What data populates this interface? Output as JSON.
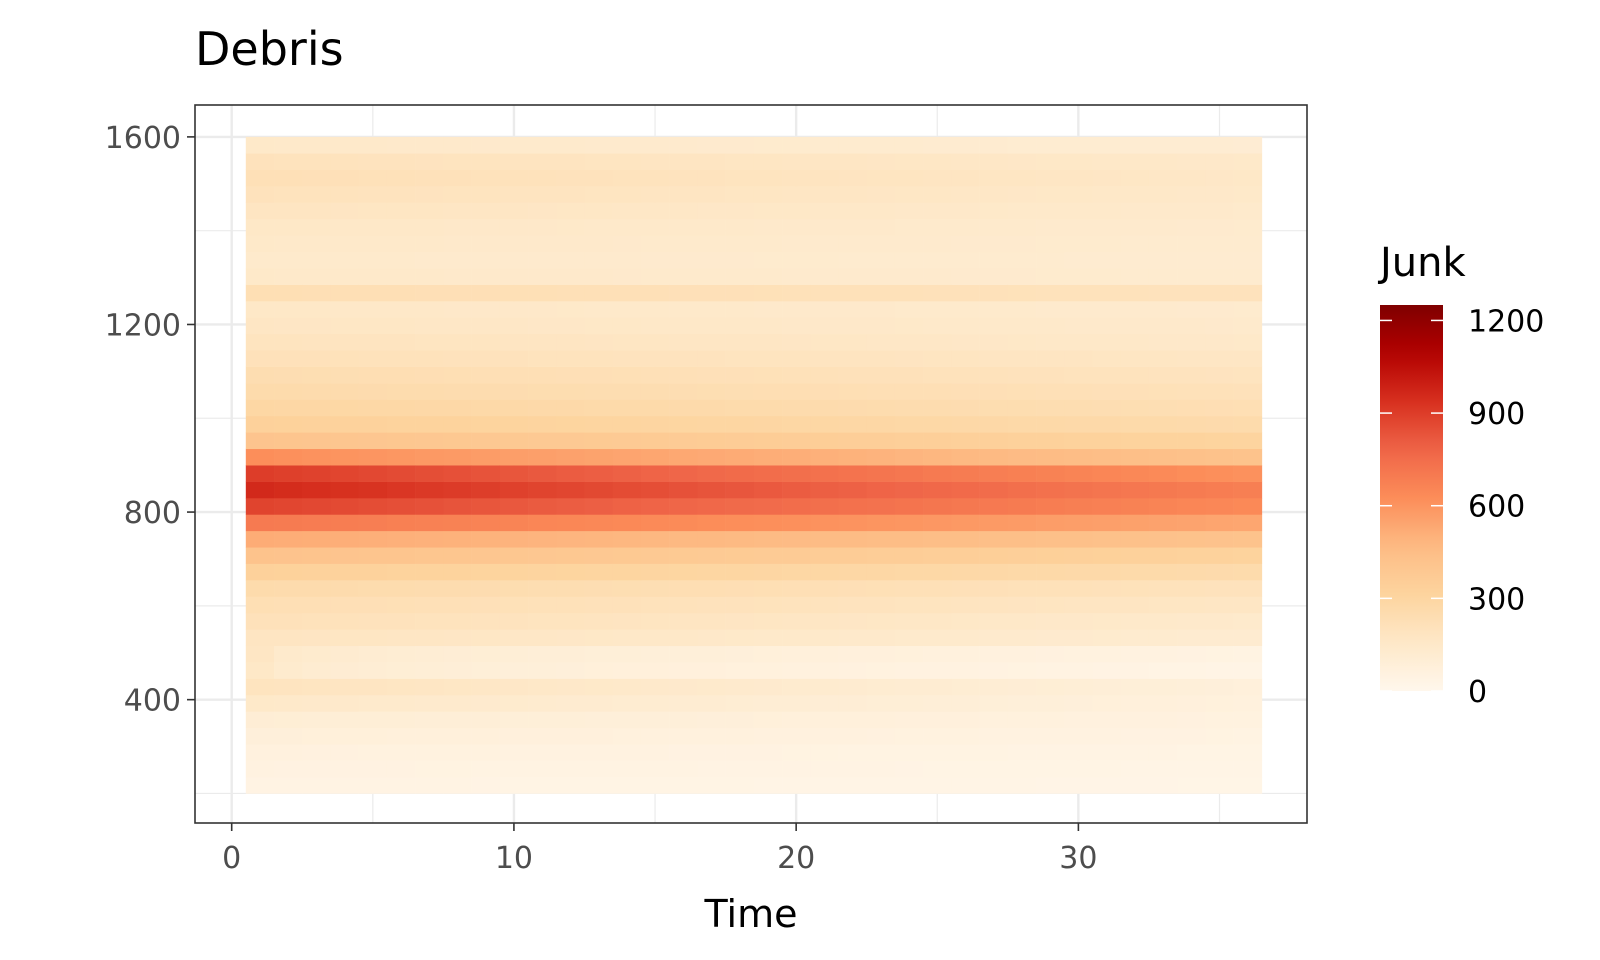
{
  "chart_data": {
    "type": "heatmap",
    "title": "Debris",
    "xlabel": "Time",
    "ylabel": "",
    "xlim": [
      -1.3,
      38.1
    ],
    "ylim": [
      137,
      1668
    ],
    "x_ticks": [
      0,
      10,
      20,
      30
    ],
    "y_ticks": [
      400,
      800,
      1200,
      1600
    ],
    "grid": true,
    "x": [
      1,
      2,
      3,
      4,
      5,
      6,
      7,
      8,
      9,
      10,
      11,
      12,
      13,
      14,
      15,
      16,
      17,
      18,
      19,
      20,
      21,
      22,
      23,
      24,
      25,
      26,
      27,
      28,
      29,
      30,
      31,
      32,
      33,
      34,
      35,
      36
    ],
    "y": [
      200,
      235,
      270,
      305,
      340,
      375,
      410,
      445,
      480,
      515,
      550,
      585,
      620,
      655,
      690,
      725,
      760,
      795,
      830,
      865,
      900,
      935,
      970,
      1005,
      1040,
      1075,
      1110,
      1145,
      1180,
      1215,
      1250,
      1285,
      1320,
      1355,
      1390,
      1425,
      1460,
      1495,
      1530,
      1565
    ],
    "z_profile": {
      "y": [
        200,
        235,
        270,
        305,
        340,
        375,
        410,
        445,
        480,
        515,
        550,
        585,
        620,
        655,
        690,
        725,
        760,
        795,
        830,
        865,
        900,
        935,
        970,
        1005,
        1040,
        1075,
        1110,
        1145,
        1180,
        1215,
        1250,
        1285,
        1320,
        1355,
        1390,
        1425,
        1460,
        1495,
        1530,
        1565
      ],
      "t1": [
        40,
        50,
        60,
        80,
        100,
        150,
        190,
        160,
        170,
        180,
        210,
        230,
        260,
        330,
        420,
        520,
        700,
        880,
        960,
        900,
        620,
        410,
        330,
        290,
        260,
        240,
        210,
        190,
        170,
        160,
        230,
        150,
        140,
        150,
        160,
        180,
        200,
        220,
        200,
        150
      ],
      "t36": [
        25,
        30,
        35,
        45,
        55,
        65,
        75,
        90,
        105,
        120,
        140,
        170,
        200,
        260,
        320,
        420,
        540,
        640,
        680,
        610,
        420,
        310,
        260,
        230,
        210,
        190,
        170,
        150,
        140,
        130,
        200,
        125,
        120,
        125,
        130,
        140,
        150,
        160,
        150,
        110
      ]
    },
    "z_note_t1_bump": [
      445,
      480
    ],
    "legend": {
      "title": "Junk",
      "position": "right",
      "range": [
        0,
        1250
      ],
      "ticks": [
        0,
        300,
        600,
        900,
        1200
      ],
      "tick_labels": [
        "0",
        "300",
        "600",
        "900",
        "1200"
      ]
    },
    "colors": [
      "#fff7ec",
      "#fee8c8",
      "#fdd49e",
      "#fdbb84",
      "#fc8d59",
      "#ef6548",
      "#d7301f",
      "#b30000",
      "#7f0000"
    ]
  }
}
